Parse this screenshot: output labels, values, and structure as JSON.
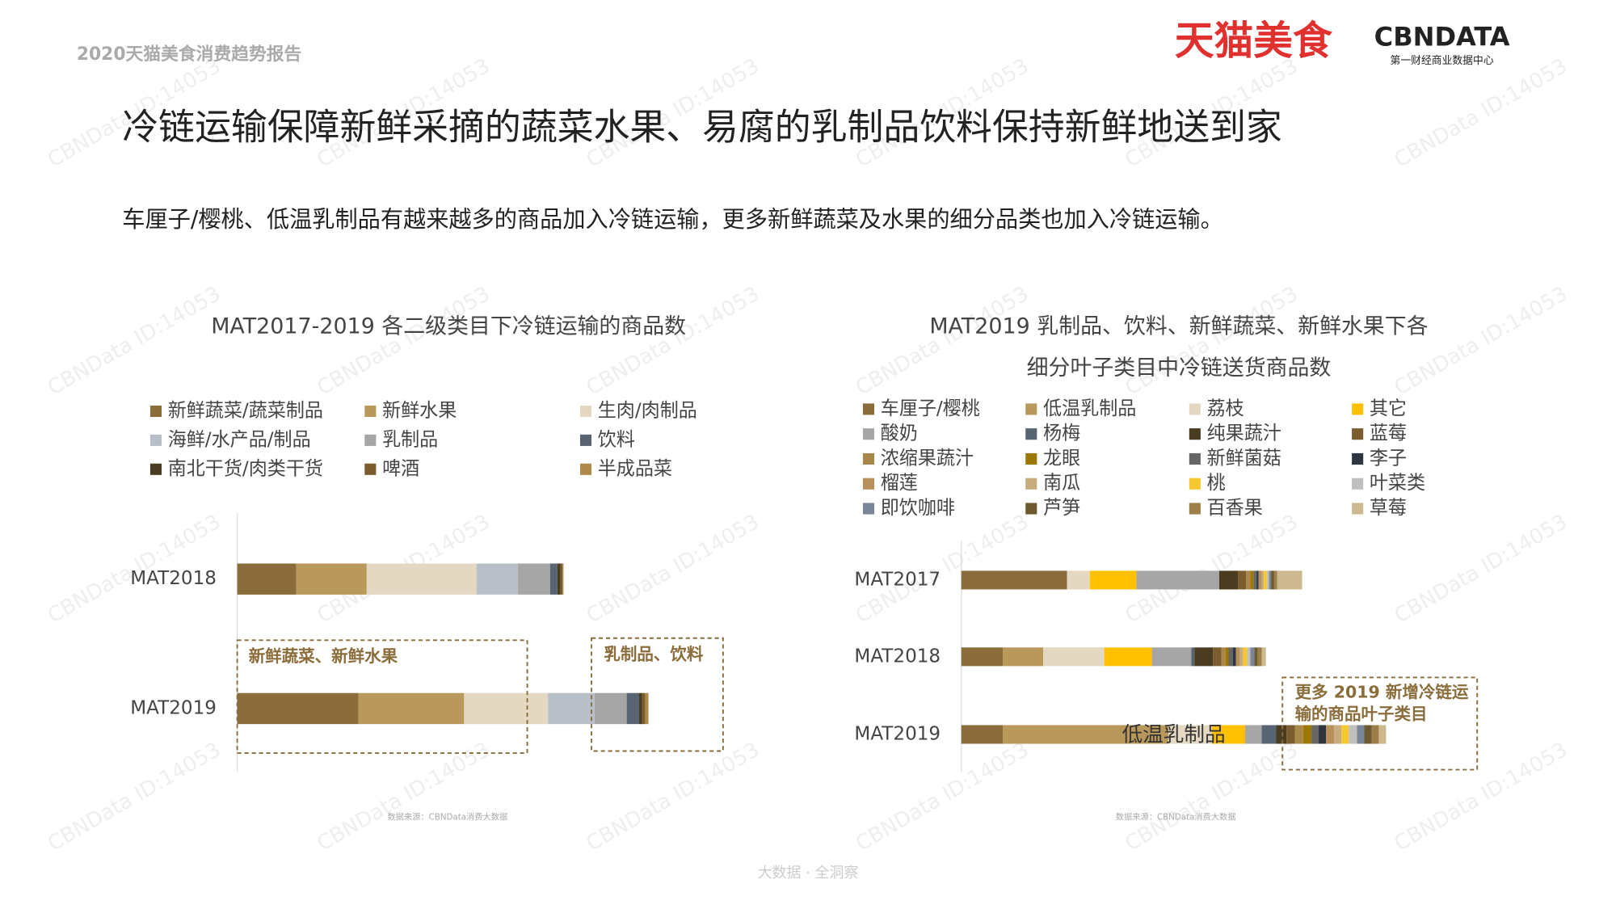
{
  "header": {
    "report": "2020天猫美食消费趋势报告",
    "logo_main": "天猫美食",
    "logo_brand": "CBNDATA",
    "logo_sub": "第一财经商业数据中心"
  },
  "title": "冷链运输保障新鲜采摘的蔬菜水果、易腐的乳制品饮料保持新鲜地送到家",
  "subtitle": "车厘子/樱桃、低温乳制品有越来越多的商品加入冷链运输，更多新鲜蔬菜及水果的细分品类也加入冷链运输。",
  "watermark": "CBNData ID:14053",
  "footer": "大数据 · 全洞察",
  "chart_data": [
    {
      "type": "bar",
      "orientation": "horizontal",
      "stacked": true,
      "title": [
        "MAT2017-2019 各二级类目下冷链运输的商品数"
      ],
      "categories": [
        "MAT2018",
        "MAT2019"
      ],
      "series": [
        {
          "name": "新鲜蔬菜/蔬菜制品",
          "color": "#8B6D3C",
          "values": [
            57,
            117
          ]
        },
        {
          "name": "新鲜水果",
          "color": "#B9985B",
          "values": [
            68,
            102
          ]
        },
        {
          "name": "生肉/肉制品",
          "color": "#E4D8C2",
          "values": [
            106,
            81
          ]
        },
        {
          "name": "海鲜/水产品/制品",
          "color": "#B9BFC9",
          "values": [
            40,
            45
          ]
        },
        {
          "name": "乳制品",
          "color": "#A6A6A6",
          "values": [
            31,
            31
          ]
        },
        {
          "name": "饮料",
          "color": "#596472",
          "values": [
            7,
            12
          ]
        },
        {
          "name": "南北干货/肉类干货",
          "color": "#4A3C20",
          "values": [
            3,
            3
          ]
        },
        {
          "name": "啤酒",
          "color": "#7A5C2E",
          "values": [
            2,
            3
          ]
        },
        {
          "name": "半成品菜",
          "color": "#B08A4A",
          "values": [
            1,
            3
          ]
        }
      ],
      "annotations": [
        {
          "text": [
            "新鲜蔬菜、新鲜水果"
          ]
        },
        {
          "text": [
            "乳制品、饮料"
          ]
        }
      ],
      "source": "数据来源：CBNData消费大数据"
    },
    {
      "type": "bar",
      "orientation": "horizontal",
      "stacked": true,
      "title": [
        "MAT2019 乳制品、饮料、新鲜蔬菜、新鲜水果下各",
        "细分叶子类目中冷链送货商品数"
      ],
      "categories": [
        "MAT2017",
        "MAT2018",
        "MAT2019"
      ],
      "series": [
        {
          "name": "车厘子/樱桃",
          "color": "#8B6D3C",
          "values": [
            102,
            40,
            40
          ]
        },
        {
          "name": "低温乳制品",
          "color": "#B9985B",
          "values": [
            0,
            39,
            160
          ]
        },
        {
          "name": "荔枝",
          "color": "#E4D8C2",
          "values": [
            22,
            59,
            42
          ]
        },
        {
          "name": "其它",
          "color": "#FFC000",
          "values": [
            45,
            46,
            32
          ]
        },
        {
          "name": "酸奶",
          "color": "#A6A6A6",
          "values": [
            80,
            38,
            16
          ]
        },
        {
          "name": "杨梅",
          "color": "#596472",
          "values": [
            0,
            3,
            14
          ]
        },
        {
          "name": "纯果蔬汁",
          "color": "#4A3C20",
          "values": [
            18,
            18,
            10
          ]
        },
        {
          "name": "蓝莓",
          "color": "#7A5C2E",
          "values": [
            8,
            8,
            8
          ]
        },
        {
          "name": "浓缩果蔬汁",
          "color": "#A8884A",
          "values": [
            4,
            4,
            8
          ]
        },
        {
          "name": "龙眼",
          "color": "#9C7800",
          "values": [
            3,
            3,
            8
          ]
        },
        {
          "name": "新鲜菌菇",
          "color": "#666666",
          "values": [
            3,
            4,
            7
          ]
        },
        {
          "name": "李子",
          "color": "#2F3540",
          "values": [
            2,
            3,
            7
          ]
        },
        {
          "name": "榴莲",
          "color": "#B8905A",
          "values": [
            3,
            4,
            8
          ]
        },
        {
          "name": "南瓜",
          "color": "#C8AC80",
          "values": [
            2,
            3,
            7
          ]
        },
        {
          "name": "桃",
          "color": "#F5C830",
          "values": [
            3,
            4,
            7
          ]
        },
        {
          "name": "叶菜类",
          "color": "#BFBFBF",
          "values": [
            2,
            3,
            8
          ]
        },
        {
          "name": "即饮咖啡",
          "color": "#7A8599",
          "values": [
            2,
            4,
            7
          ]
        },
        {
          "name": "芦笋",
          "color": "#6E5A30",
          "values": [
            3,
            3,
            7
          ]
        },
        {
          "name": "百香果",
          "color": "#9C7E48",
          "values": [
            3,
            4,
            7
          ]
        },
        {
          "name": "草莓",
          "color": "#CDB890",
          "values": [
            24,
            4,
            7
          ]
        }
      ],
      "annotations": [
        {
          "text": [
            "更多 2019 新增冷链运",
            "输的商品叶子类目"
          ]
        },
        {
          "text": [
            "低温乳制品"
          ]
        }
      ],
      "source": "数据来源：CBNData消费大数据"
    }
  ]
}
